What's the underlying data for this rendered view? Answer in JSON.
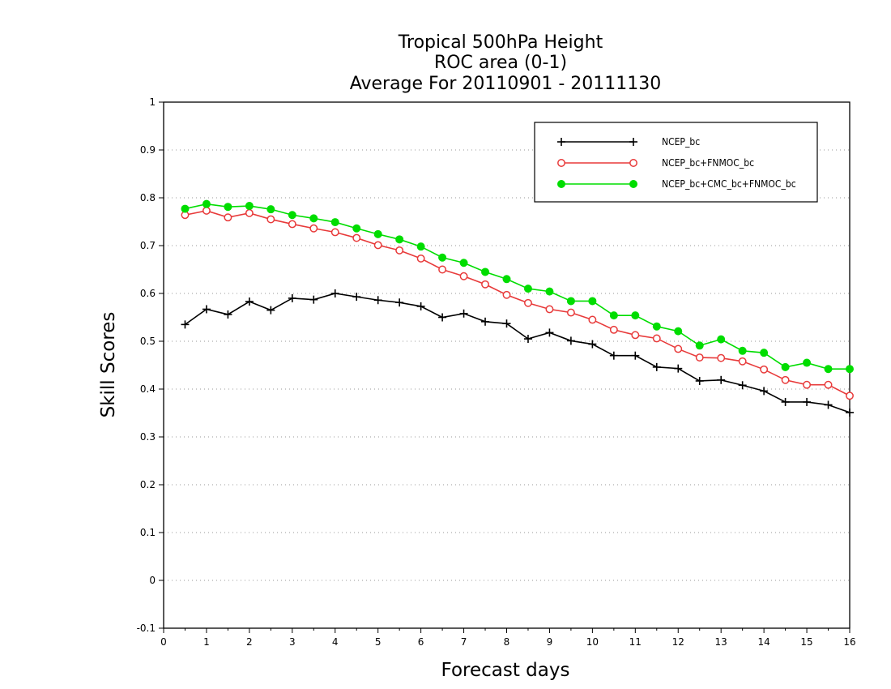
{
  "chart_data": {
    "type": "line",
    "title_lines": [
      "Tropical 500hPa Height",
      "ROC area (0-1)",
      "Average For 20110901 - 20111130"
    ],
    "xlabel": "Forecast days",
    "ylabel": "Skill Scores",
    "xlim": [
      0,
      16
    ],
    "ylim": [
      -0.1,
      1
    ],
    "x_ticks": [
      "0",
      "1",
      "2",
      "3",
      "4",
      "5",
      "6",
      "7",
      "8",
      "9",
      "10",
      "11",
      "12",
      "13",
      "14",
      "15",
      "16"
    ],
    "y_ticks": [
      "-0.1",
      "0",
      "0.1",
      "0.2",
      "0.3",
      "0.4",
      "0.5",
      "0.6",
      "0.7",
      "0.8",
      "0.9",
      "1"
    ],
    "grid": "horizontal dotted",
    "legend_position": "top-right",
    "x": [
      0.5,
      1,
      1.5,
      2,
      2.5,
      3,
      3.5,
      4,
      4.5,
      5,
      5.5,
      6,
      6.5,
      7,
      7.5,
      8,
      8.5,
      9,
      9.5,
      10,
      10.5,
      11,
      11.5,
      12,
      12.5,
      13,
      13.5,
      14,
      14.5,
      15,
      15.5,
      16
    ],
    "series": [
      {
        "name": "NCEP_bc",
        "color": "#000000",
        "marker": "plus",
        "values": [
          0.535,
          0.567,
          0.556,
          0.583,
          0.565,
          0.59,
          0.587,
          0.6,
          0.593,
          0.586,
          0.581,
          0.573,
          0.55,
          0.558,
          0.541,
          0.537,
          0.505,
          0.518,
          0.501,
          0.494,
          0.47,
          0.47,
          0.446,
          0.443,
          0.417,
          0.419,
          0.408,
          0.396,
          0.373,
          0.373,
          0.367,
          0.351
        ]
      },
      {
        "name": "NCEP_bc+FNMOC_bc",
        "color": "#e83a3a",
        "marker": "open-circle",
        "values": [
          0.764,
          0.773,
          0.759,
          0.768,
          0.755,
          0.745,
          0.736,
          0.728,
          0.716,
          0.701,
          0.69,
          0.673,
          0.65,
          0.636,
          0.619,
          0.597,
          0.58,
          0.567,
          0.56,
          0.545,
          0.524,
          0.513,
          0.506,
          0.484,
          0.466,
          0.465,
          0.458,
          0.441,
          0.419,
          0.409,
          0.409,
          0.386
        ]
      },
      {
        "name": "NCEP_bc+CMC_bc+FNMOC_bc",
        "color": "#00dd00",
        "marker": "filled-circle",
        "values": [
          0.777,
          0.787,
          0.781,
          0.783,
          0.776,
          0.764,
          0.757,
          0.749,
          0.736,
          0.724,
          0.713,
          0.698,
          0.675,
          0.664,
          0.645,
          0.63,
          0.61,
          0.604,
          0.584,
          0.584,
          0.554,
          0.554,
          0.531,
          0.521,
          0.491,
          0.504,
          0.48,
          0.476,
          0.446,
          0.455,
          0.442,
          0.442
        ]
      }
    ]
  }
}
